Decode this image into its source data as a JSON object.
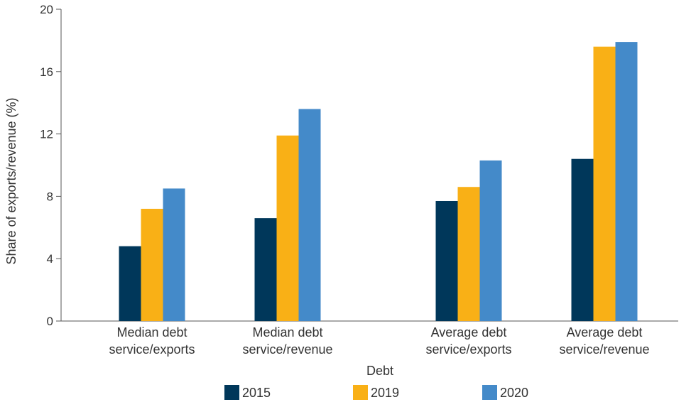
{
  "chart_data": {
    "type": "bar",
    "categories": [
      [
        "Median debt",
        "service/exports"
      ],
      [
        "Median debt",
        "service/revenue"
      ],
      [
        "Average debt",
        "service/exports"
      ],
      [
        "Average debt",
        "service/revenue"
      ]
    ],
    "series": [
      {
        "name": "2015",
        "color": "#00375A",
        "values": [
          4.8,
          6.6,
          7.7,
          10.4
        ]
      },
      {
        "name": "2019",
        "color": "#F9B016",
        "values": [
          7.2,
          11.9,
          8.6,
          17.6
        ]
      },
      {
        "name": "2020",
        "color": "#448AC9",
        "values": [
          8.5,
          13.6,
          10.3,
          17.9
        ]
      }
    ],
    "xlabel": "Debt",
    "ylabel": "Share of exports/revenue (%)",
    "ylim": [
      0,
      20
    ],
    "yticks": [
      0,
      4,
      8,
      12,
      16,
      20
    ],
    "grid": false,
    "legend_position": "bottom"
  }
}
